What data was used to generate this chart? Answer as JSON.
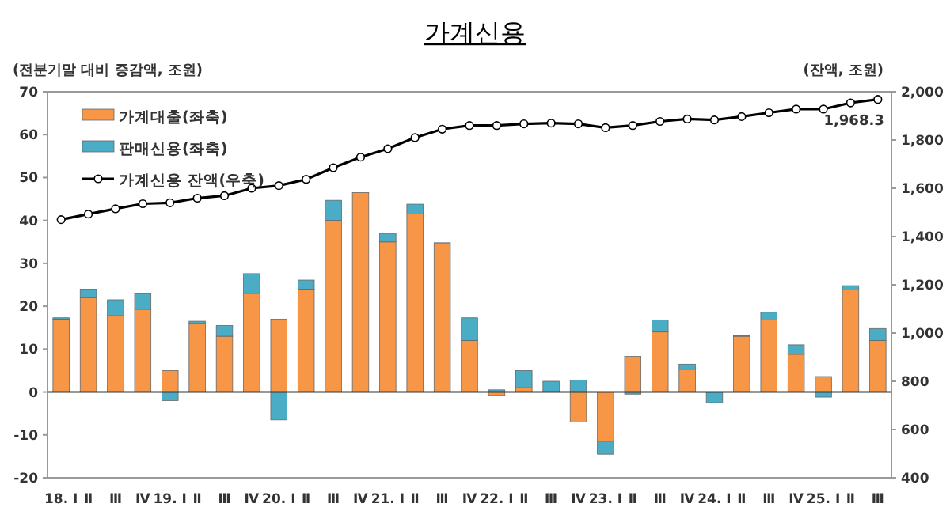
{
  "chart_data": {
    "type": "bar",
    "title": "가계신용",
    "ylabel": "(전분기말 대비 증감액, 조원)",
    "y2label": "(잔액, 조원)",
    "categories": [
      "18. Ⅰ",
      "Ⅱ",
      "Ⅲ",
      "Ⅳ",
      "19. Ⅰ",
      "Ⅱ",
      "Ⅲ",
      "Ⅳ",
      "20. Ⅰ",
      "Ⅱ",
      "Ⅲ",
      "Ⅳ",
      "21. Ⅰ",
      "Ⅱ",
      "Ⅲ",
      "Ⅳ",
      "22. Ⅰ",
      "Ⅱ",
      "Ⅲ",
      "Ⅳ",
      "23. Ⅰ",
      "Ⅱ",
      "Ⅲ",
      "Ⅳ",
      "24. Ⅰ",
      "Ⅱ",
      "Ⅲ",
      "Ⅳ",
      "25. Ⅰ",
      "Ⅱ",
      "Ⅲ"
    ],
    "stacked": true,
    "series": [
      {
        "name": "가계대출(좌축)",
        "color": "#f79646",
        "values": [
          17,
          22,
          17.8,
          19.3,
          5,
          16,
          13,
          23,
          17,
          24,
          40,
          46.5,
          35,
          41.5,
          34.5,
          12,
          -0.8,
          1,
          null,
          -7,
          -11.5,
          8.3,
          14,
          5.3,
          null,
          13,
          16.8,
          8.8,
          3.6,
          23.8,
          12
        ]
      },
      {
        "name": "판매신용(좌축)",
        "color": "#4bacc6",
        "values": [
          0.3,
          2,
          3.7,
          3.6,
          -2,
          0.5,
          2.5,
          4.6,
          -6.5,
          2.1,
          4.7,
          null,
          2,
          2.3,
          0.3,
          5.3,
          0.5,
          4,
          2.5,
          2.8,
          -3,
          -0.5,
          2.8,
          1.2,
          -2.5,
          0.2,
          1.8,
          2.2,
          -1.2,
          1,
          2.8
        ]
      },
      {
        "name": "가계신용 잔액(우축)",
        "type": "line",
        "axis": "y2",
        "color": "#000000",
        "marker": "circle",
        "values": [
          1470,
          1493,
          1515,
          1536,
          1540,
          1559,
          1569,
          1600,
          1611,
          1637,
          1685,
          1729,
          1764,
          1810,
          1845,
          1860,
          1860,
          1867,
          1870,
          1867,
          1851,
          1860,
          1877,
          1887,
          1883,
          1897,
          1913,
          1928,
          1928,
          1954,
          1968.3
        ],
        "value_labels": [
          null,
          null,
          null,
          null,
          null,
          null,
          null,
          null,
          null,
          null,
          null,
          null,
          null,
          null,
          null,
          null,
          null,
          null,
          null,
          null,
          null,
          null,
          null,
          null,
          null,
          null,
          null,
          null,
          null,
          null,
          "1,968.3"
        ]
      }
    ],
    "ylim": [
      -20,
      70
    ],
    "yticks": [
      -20,
      -10,
      0,
      10,
      20,
      30,
      40,
      50,
      60,
      70
    ],
    "y2lim": [
      400,
      2000
    ],
    "y2ticks": [
      400,
      600,
      800,
      {
        "value": 1000,
        "label": "1,000"
      },
      {
        "value": 1200,
        "label": "1,200"
      },
      {
        "value": 1400,
        "label": "1,400"
      },
      {
        "value": 1600,
        "label": "1,600"
      },
      {
        "value": 1800,
        "label": "1,800"
      },
      {
        "value": 2000,
        "label": "2,000"
      }
    ],
    "legend": "top left"
  }
}
